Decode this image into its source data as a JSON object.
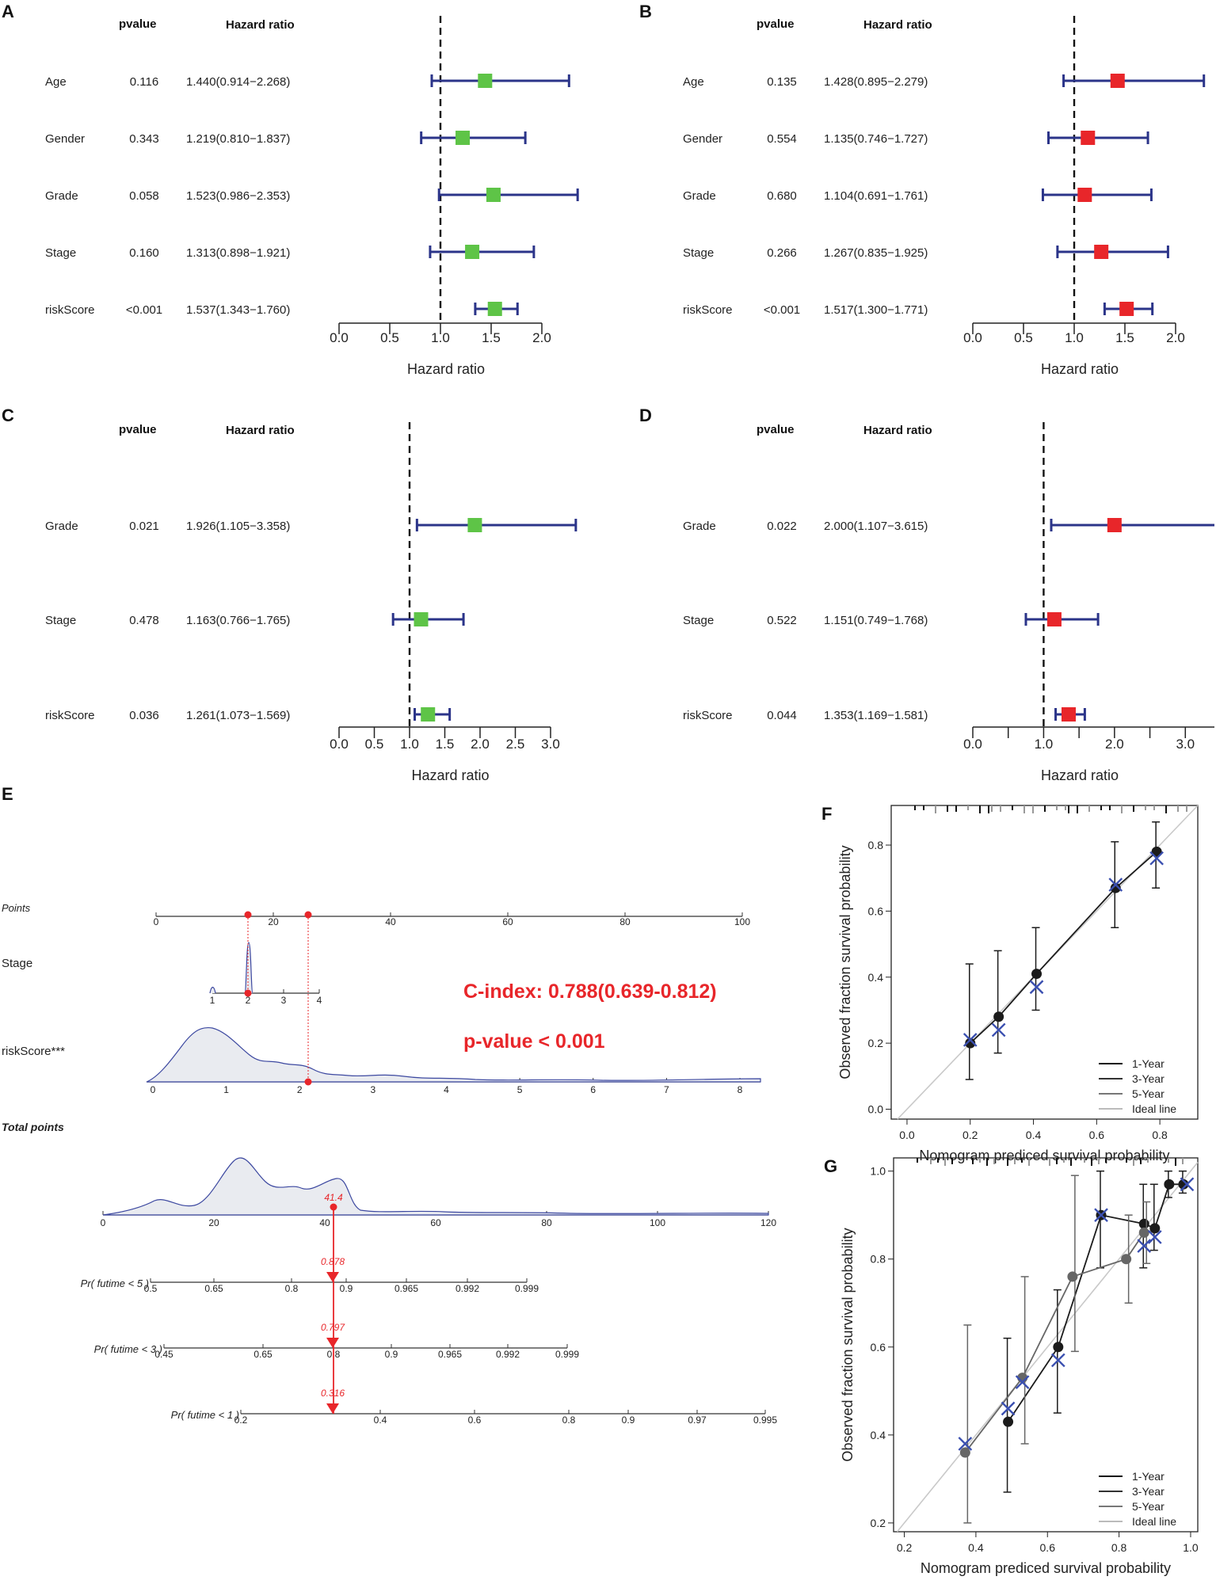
{
  "chart_data": [
    {
      "panel": "A",
      "type": "forest",
      "header_pvalue": "pvalue",
      "header_hr": "Hazard ratio",
      "xlabel": "Hazard ratio",
      "xlim": [
        0,
        2.0
      ],
      "xticks": [
        "0.0",
        "0.5",
        "1.0",
        "1.5",
        "2.0"
      ],
      "ref": 1.0,
      "box_color": "#5ec447",
      "rows": [
        {
          "label": "Age",
          "pvalue": "0.116",
          "hr_text": "1.440(0.914−2.268)",
          "hr": 1.44,
          "lo": 0.914,
          "hi": 2.268
        },
        {
          "label": "Gender",
          "pvalue": "0.343",
          "hr_text": "1.219(0.810−1.837)",
          "hr": 1.219,
          "lo": 0.81,
          "hi": 1.837
        },
        {
          "label": "Grade",
          "pvalue": "0.058",
          "hr_text": "1.523(0.986−2.353)",
          "hr": 1.523,
          "lo": 0.986,
          "hi": 2.353
        },
        {
          "label": "Stage",
          "pvalue": "0.160",
          "hr_text": "1.313(0.898−1.921)",
          "hr": 1.313,
          "lo": 0.898,
          "hi": 1.921
        },
        {
          "label": "riskScore",
          "pvalue": "<0.001",
          "hr_text": "1.537(1.343−1.760)",
          "hr": 1.537,
          "lo": 1.343,
          "hi": 1.76
        }
      ]
    },
    {
      "panel": "B",
      "type": "forest",
      "header_pvalue": "pvalue",
      "header_hr": "Hazard ratio",
      "xlabel": "Hazard ratio",
      "xlim": [
        0,
        2.0
      ],
      "xticks": [
        "0.0",
        "0.5",
        "1.0",
        "1.5",
        "2.0"
      ],
      "ref": 1.0,
      "box_color": "#e8262a",
      "rows": [
        {
          "label": "Age",
          "pvalue": "0.135",
          "hr_text": "1.428(0.895−2.279)",
          "hr": 1.428,
          "lo": 0.895,
          "hi": 2.279
        },
        {
          "label": "Gender",
          "pvalue": "0.554",
          "hr_text": "1.135(0.746−1.727)",
          "hr": 1.135,
          "lo": 0.746,
          "hi": 1.727
        },
        {
          "label": "Grade",
          "pvalue": "0.680",
          "hr_text": "1.104(0.691−1.761)",
          "hr": 1.104,
          "lo": 0.691,
          "hi": 1.761
        },
        {
          "label": "Stage",
          "pvalue": "0.266",
          "hr_text": "1.267(0.835−1.925)",
          "hr": 1.267,
          "lo": 0.835,
          "hi": 1.925
        },
        {
          "label": "riskScore",
          "pvalue": "<0.001",
          "hr_text": "1.517(1.300−1.771)",
          "hr": 1.517,
          "lo": 1.3,
          "hi": 1.771
        }
      ]
    },
    {
      "panel": "C",
      "type": "forest",
      "header_pvalue": "pvalue",
      "header_hr": "Hazard ratio",
      "xlabel": "Hazard ratio",
      "xlim": [
        0,
        3.0
      ],
      "xticks": [
        "0.0",
        "0.5",
        "1.0",
        "1.5",
        "2.0",
        "2.5",
        "3.0"
      ],
      "ref": 1.0,
      "box_color": "#5ec447",
      "rows": [
        {
          "label": "Grade",
          "pvalue": "0.021",
          "hr_text": "1.926(1.105−3.358)",
          "hr": 1.926,
          "lo": 1.105,
          "hi": 3.358
        },
        {
          "label": "Stage",
          "pvalue": "0.478",
          "hr_text": "1.163(0.766−1.765)",
          "hr": 1.163,
          "lo": 0.766,
          "hi": 1.765
        },
        {
          "label": "riskScore",
          "pvalue": "0.036",
          "hr_text": "1.261(1.073−1.569)",
          "hr": 1.261,
          "lo": 1.073,
          "hi": 1.569
        }
      ]
    },
    {
      "panel": "D",
      "type": "forest",
      "header_pvalue": "pvalue",
      "header_hr": "Hazard ratio",
      "xlabel": "Hazard ratio",
      "xlim": [
        0,
        3.5
      ],
      "xticks": [
        "0.0",
        "",
        "1.0",
        "",
        "2.0",
        "",
        "3.0",
        ""
      ],
      "ref": 1.0,
      "box_color": "#e8262a",
      "rows": [
        {
          "label": "Grade",
          "pvalue": "0.022",
          "hr_text": "2.000(1.107−3.615)",
          "hr": 2.0,
          "lo": 1.107,
          "hi": 3.615
        },
        {
          "label": "Stage",
          "pvalue": "0.522",
          "hr_text": "1.151(0.749−1.768)",
          "hr": 1.151,
          "lo": 0.749,
          "hi": 1.768
        },
        {
          "label": "riskScore",
          "pvalue": "0.044",
          "hr_text": "1.353(1.169−1.581)",
          "hr": 1.353,
          "lo": 1.169,
          "hi": 1.581
        }
      ]
    },
    {
      "panel": "E",
      "type": "nomogram",
      "points_label": "Points",
      "points_ticks": [
        "0",
        "20",
        "40",
        "60",
        "80",
        "100"
      ],
      "stage_label": "Stage",
      "stage_ticks": [
        "1",
        "2",
        "3",
        "4"
      ],
      "risk_label": "riskScore***",
      "risk_ticks": [
        "0",
        "1",
        "2",
        "3",
        "4",
        "5",
        "6",
        "7",
        "8"
      ],
      "total_label": "Total points",
      "total_ticks": [
        "0",
        "20",
        "40",
        "60",
        "80",
        "100",
        "120"
      ],
      "total_value": "41.4",
      "cindex": "C-index: 0.788(0.639-0.812)",
      "pvalue": "p-value < 0.001",
      "prob_rows": [
        {
          "label": "Pr( futime < 5 )",
          "value": "0.878",
          "ticks": [
            "0.5",
            "0.65",
            "0.8",
            "0.9",
            "0.965",
            "0.992",
            "0.999"
          ]
        },
        {
          "label": "Pr( futime < 3 )",
          "value": "0.797",
          "ticks": [
            "0.45",
            "0.65",
            "0.8",
            "0.9",
            "0.965",
            "0.992",
            "0.999"
          ]
        },
        {
          "label": "Pr( futime < 1 )",
          "value": "0.316",
          "ticks": [
            "0.2",
            "0.4",
            "0.6",
            "0.8",
            "0.9",
            "0.97",
            "0.995"
          ]
        }
      ]
    },
    {
      "panel": "F",
      "type": "line",
      "xlabel": "Nomogram prediced survival probability",
      "ylabel": "Observed fraction survival probability",
      "xlim": [
        -0.05,
        0.92
      ],
      "ylim": [
        -0.03,
        0.92
      ],
      "xticks": [
        "0.0",
        "0.2",
        "0.4",
        "0.6",
        "0.8"
      ],
      "yticks": [
        "0.0",
        "0.2",
        "0.4",
        "0.6",
        "0.8"
      ],
      "legend": [
        "1-Year",
        "3-Year",
        "5-Year",
        "Ideal line"
      ],
      "series": [
        {
          "name": "1-Year",
          "x": [
            0.2,
            0.29,
            0.41,
            0.66,
            0.79
          ],
          "y": [
            0.2,
            0.28,
            0.41,
            0.67,
            0.78
          ],
          "lo": [
            0.09,
            0.17,
            0.3,
            0.55,
            0.67
          ],
          "hi": [
            0.44,
            0.48,
            0.55,
            0.81,
            0.87
          ]
        },
        {
          "name": "ideal-cross",
          "x": [
            0.2,
            0.29,
            0.41,
            0.66,
            0.79
          ],
          "y": [
            0.21,
            0.24,
            0.37,
            0.68,
            0.76
          ]
        }
      ]
    },
    {
      "panel": "G",
      "type": "line",
      "xlabel": "Nomogram prediced survival probability",
      "ylabel": "Observed fraction survival probability",
      "xlim": [
        0.17,
        1.02
      ],
      "ylim": [
        0.18,
        1.03
      ],
      "xticks": [
        "0.2",
        "0.4",
        "0.6",
        "0.8",
        "1.0"
      ],
      "yticks": [
        "0.2",
        "0.4",
        "0.6",
        "0.8",
        "1.0"
      ],
      "legend": [
        "1-Year",
        "3-Year",
        "5-Year",
        "Ideal line"
      ],
      "series": [
        {
          "name": "1-Year",
          "x": [
            0.49,
            0.63,
            0.75,
            0.87,
            0.9,
            0.94,
            0.98
          ],
          "y": [
            0.43,
            0.6,
            0.9,
            0.88,
            0.87,
            0.97,
            0.97
          ],
          "lo": [
            0.27,
            0.45,
            0.78,
            0.78,
            0.82,
            0.94,
            0.95
          ],
          "hi": [
            0.62,
            0.73,
            1.0,
            0.97,
            0.97,
            1.0,
            1.0
          ]
        },
        {
          "name": "3-Year",
          "x": [
            0.37,
            0.53,
            0.67,
            0.82,
            0.87
          ],
          "y": [
            0.36,
            0.53,
            0.76,
            0.8,
            0.86
          ],
          "lo": [
            0.2,
            0.38,
            0.59,
            0.7,
            0.79
          ],
          "hi": [
            0.65,
            0.76,
            0.99,
            0.9,
            0.93
          ]
        },
        {
          "name": "crosses",
          "x": [
            0.37,
            0.49,
            0.53,
            0.63,
            0.75,
            0.87,
            0.9,
            0.99
          ],
          "y": [
            0.38,
            0.46,
            0.52,
            0.57,
            0.9,
            0.83,
            0.85,
            0.97
          ]
        }
      ]
    }
  ]
}
